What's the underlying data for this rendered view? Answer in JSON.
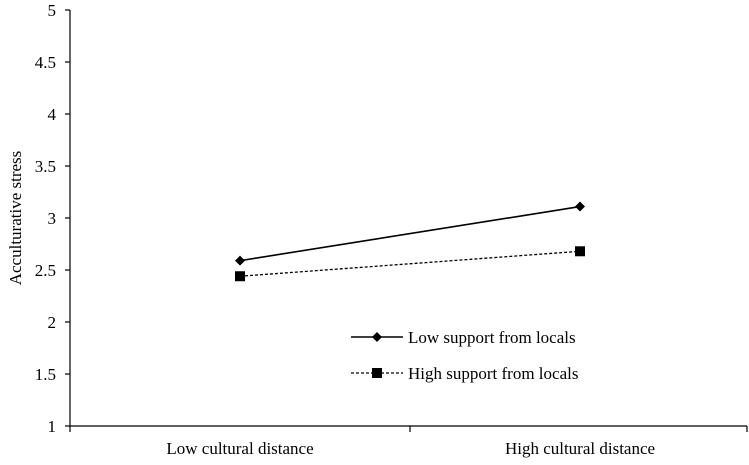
{
  "chart_data": {
    "type": "line",
    "title": "",
    "xlabel": "",
    "ylabel": "Acculturative  stress",
    "categories": [
      "Low cultural distance",
      "High cultural distance"
    ],
    "ylim": [
      1,
      5
    ],
    "yticks": [
      "1",
      "1.5",
      "2",
      "2.5",
      "3",
      "3.5",
      "4",
      "4.5",
      "5"
    ],
    "grid": false,
    "legend_position": "lower-right",
    "series": [
      {
        "name": "Low support from locals",
        "values": [
          2.59,
          3.11
        ],
        "marker": "diamond",
        "line_style": "solid",
        "color": "#000000"
      },
      {
        "name": "High support from locals",
        "values": [
          2.44,
          2.68
        ],
        "marker": "square",
        "line_style": "dashed",
        "color": "#000000"
      }
    ]
  }
}
